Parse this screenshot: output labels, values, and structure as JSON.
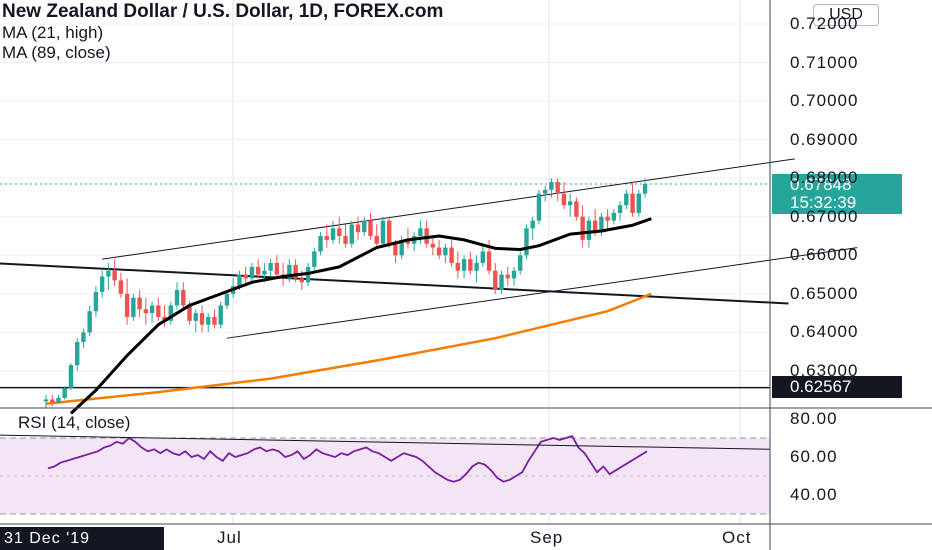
{
  "legend": {
    "title": "New Zealand Dollar / U.S. Dollar, 1D, FOREX.com",
    "ma1": "MA (21, high)",
    "ma2": "MA (89, close)",
    "rsi": "RSI (14, close)"
  },
  "currency_button": "USD",
  "price_tags": {
    "last_price": "0.67848",
    "countdown": "15:32:39",
    "level": "0.62567"
  },
  "cursor_date": "31 Dec '19",
  "colors": {
    "up": "#26a69a",
    "down": "#ef5350",
    "ma21": "#000000",
    "ma89": "#f57c00",
    "rsi_line": "#7b1fa2",
    "rsi_band": "#f3e5f5",
    "last_price_bg": "#26a69a",
    "level_bg": "#131722"
  },
  "chart_data": [
    {
      "type": "candlestick",
      "title": "New Zealand Dollar / U.S. Dollar, 1D, FOREX.com",
      "x_ticks": [
        "Jul",
        "Sep",
        "Oct"
      ],
      "y_ticks": [
        "0.72000",
        "0.71000",
        "0.70000",
        "0.69000",
        "0.68000",
        "0.67000",
        "0.66000",
        "0.65000",
        "0.64000",
        "0.63000"
      ],
      "ylim": [
        0.6238,
        0.7245
      ],
      "grid": true,
      "candles": [
        [
          0.6221,
          0.6238,
          0.6205,
          0.6226
        ],
        [
          0.6226,
          0.6238,
          0.6208,
          0.6218
        ],
        [
          0.6218,
          0.6238,
          0.6215,
          0.623
        ],
        [
          0.623,
          0.626,
          0.6226,
          0.6255
        ],
        [
          0.6255,
          0.632,
          0.625,
          0.6315
        ],
        [
          0.6315,
          0.6385,
          0.63,
          0.6375
        ],
        [
          0.6375,
          0.641,
          0.636,
          0.64
        ],
        [
          0.64,
          0.647,
          0.639,
          0.6455
        ],
        [
          0.6455,
          0.652,
          0.644,
          0.6505
        ],
        [
          0.6505,
          0.656,
          0.649,
          0.6545
        ],
        [
          0.6545,
          0.658,
          0.651,
          0.656
        ],
        [
          0.656,
          0.659,
          0.652,
          0.6535
        ],
        [
          0.6535,
          0.6555,
          0.649,
          0.65
        ],
        [
          0.65,
          0.654,
          0.642,
          0.644
        ],
        [
          0.644,
          0.65,
          0.643,
          0.649
        ],
        [
          0.649,
          0.651,
          0.644,
          0.646
        ],
        [
          0.646,
          0.649,
          0.642,
          0.645
        ],
        [
          0.645,
          0.648,
          0.6425,
          0.647
        ],
        [
          0.647,
          0.649,
          0.643,
          0.644
        ],
        [
          0.644,
          0.647,
          0.6415,
          0.643
        ],
        [
          0.643,
          0.648,
          0.642,
          0.647
        ],
        [
          0.647,
          0.653,
          0.646,
          0.651
        ],
        [
          0.651,
          0.653,
          0.646,
          0.647
        ],
        [
          0.647,
          0.648,
          0.642,
          0.643
        ],
        [
          0.643,
          0.646,
          0.64,
          0.645
        ],
        [
          0.645,
          0.647,
          0.64,
          0.642
        ],
        [
          0.642,
          0.645,
          0.64,
          0.644
        ],
        [
          0.644,
          0.646,
          0.641,
          0.642
        ],
        [
          0.642,
          0.648,
          0.641,
          0.647
        ],
        [
          0.647,
          0.651,
          0.646,
          0.65
        ],
        [
          0.65,
          0.654,
          0.649,
          0.652
        ],
        [
          0.652,
          0.656,
          0.651,
          0.655
        ],
        [
          0.655,
          0.657,
          0.652,
          0.654
        ],
        [
          0.654,
          0.658,
          0.653,
          0.657
        ],
        [
          0.657,
          0.659,
          0.654,
          0.655
        ],
        [
          0.655,
          0.658,
          0.653,
          0.656
        ],
        [
          0.656,
          0.659,
          0.654,
          0.658
        ],
        [
          0.658,
          0.66,
          0.654,
          0.655
        ],
        [
          0.655,
          0.658,
          0.652,
          0.654
        ],
        [
          0.654,
          0.659,
          0.653,
          0.6575
        ],
        [
          0.6575,
          0.659,
          0.653,
          0.654
        ],
        [
          0.654,
          0.656,
          0.651,
          0.653
        ],
        [
          0.653,
          0.658,
          0.652,
          0.657
        ],
        [
          0.657,
          0.662,
          0.656,
          0.661
        ],
        [
          0.661,
          0.666,
          0.66,
          0.665
        ],
        [
          0.665,
          0.668,
          0.662,
          0.664
        ],
        [
          0.664,
          0.669,
          0.663,
          0.667
        ],
        [
          0.667,
          0.67,
          0.663,
          0.665
        ],
        [
          0.665,
          0.668,
          0.662,
          0.663
        ],
        [
          0.663,
          0.669,
          0.662,
          0.668
        ],
        [
          0.668,
          0.67,
          0.664,
          0.666
        ],
        [
          0.666,
          0.67,
          0.665,
          0.669
        ],
        [
          0.669,
          0.671,
          0.664,
          0.665
        ],
        [
          0.665,
          0.668,
          0.662,
          0.663
        ],
        [
          0.663,
          0.67,
          0.662,
          0.669
        ],
        [
          0.669,
          0.67,
          0.662,
          0.663
        ],
        [
          0.663,
          0.664,
          0.658,
          0.66
        ],
        [
          0.66,
          0.665,
          0.659,
          0.664
        ],
        [
          0.664,
          0.667,
          0.662,
          0.663
        ],
        [
          0.663,
          0.666,
          0.661,
          0.665
        ],
        [
          0.665,
          0.669,
          0.663,
          0.667
        ],
        [
          0.667,
          0.669,
          0.662,
          0.663
        ],
        [
          0.663,
          0.665,
          0.66,
          0.662
        ],
        [
          0.662,
          0.664,
          0.659,
          0.66
        ],
        [
          0.66,
          0.663,
          0.658,
          0.662
        ],
        [
          0.662,
          0.664,
          0.657,
          0.658
        ],
        [
          0.658,
          0.661,
          0.654,
          0.656
        ],
        [
          0.656,
          0.66,
          0.654,
          0.659
        ],
        [
          0.659,
          0.661,
          0.655,
          0.656
        ],
        [
          0.656,
          0.66,
          0.653,
          0.658
        ],
        [
          0.658,
          0.663,
          0.657,
          0.661
        ],
        [
          0.661,
          0.664,
          0.655,
          0.656
        ],
        [
          0.656,
          0.658,
          0.65,
          0.651
        ],
        [
          0.651,
          0.656,
          0.65,
          0.655
        ],
        [
          0.655,
          0.657,
          0.652,
          0.654
        ],
        [
          0.654,
          0.657,
          0.652,
          0.656
        ],
        [
          0.656,
          0.661,
          0.655,
          0.66
        ],
        [
          0.66,
          0.668,
          0.659,
          0.667
        ],
        [
          0.667,
          0.67,
          0.664,
          0.669
        ],
        [
          0.669,
          0.677,
          0.668,
          0.676
        ],
        [
          0.676,
          0.678,
          0.674,
          0.677
        ],
        [
          0.677,
          0.68,
          0.675,
          0.679
        ],
        [
          0.679,
          0.68,
          0.674,
          0.676
        ],
        [
          0.676,
          0.679,
          0.672,
          0.673
        ],
        [
          0.673,
          0.676,
          0.67,
          0.674
        ],
        [
          0.674,
          0.675,
          0.669,
          0.67
        ],
        [
          0.67,
          0.673,
          0.662,
          0.664
        ],
        [
          0.664,
          0.67,
          0.662,
          0.669
        ],
        [
          0.669,
          0.672,
          0.665,
          0.666
        ],
        [
          0.666,
          0.671,
          0.665,
          0.67
        ],
        [
          0.67,
          0.672,
          0.667,
          0.669
        ],
        [
          0.669,
          0.672,
          0.668,
          0.671
        ],
        [
          0.671,
          0.674,
          0.669,
          0.673
        ],
        [
          0.673,
          0.677,
          0.672,
          0.676
        ],
        [
          0.676,
          0.679,
          0.67,
          0.671
        ],
        [
          0.671,
          0.677,
          0.67,
          0.676
        ],
        [
          0.676,
          0.68,
          0.675,
          0.6785
        ]
      ],
      "ma21_high": [
        [
          0.619,
          4
        ],
        [
          0.625,
          8
        ],
        [
          0.634,
          13
        ],
        [
          0.642,
          18
        ],
        [
          0.647,
          23
        ],
        [
          0.65,
          28
        ],
        [
          0.653,
          33
        ],
        [
          0.6545,
          38
        ],
        [
          0.6553,
          42
        ],
        [
          0.657,
          47
        ],
        [
          0.662,
          53
        ],
        [
          0.664,
          58
        ],
        [
          0.665,
          63
        ],
        [
          0.664,
          67
        ],
        [
          0.6618,
          72
        ],
        [
          0.6615,
          76
        ],
        [
          0.6625,
          79
        ],
        [
          0.6655,
          84
        ],
        [
          0.6663,
          89
        ],
        [
          0.6678,
          94
        ],
        [
          0.6695,
          97
        ]
      ],
      "ma89_close": [
        [
          0.6215,
          0
        ],
        [
          0.6245,
          18
        ],
        [
          0.628,
          36
        ],
        [
          0.633,
          54
        ],
        [
          0.6385,
          72
        ],
        [
          0.6455,
          90
        ],
        [
          0.65,
          97
        ]
      ],
      "trendlines": [
        {
          "name": "channel-upper",
          "points": [
            [
              0.659,
              9
            ],
            [
              0.685,
              120
            ]
          ]
        },
        {
          "name": "channel-lower",
          "points": [
            [
              0.6385,
              29
            ],
            [
              0.662,
              130
            ]
          ]
        },
        {
          "name": "descending-line",
          "points": [
            [
              0.6595,
              -27
            ],
            [
              0.6475,
              119
            ]
          ]
        }
      ],
      "horizontal_levels": [
        0.62567,
        0.67848
      ]
    },
    {
      "type": "line",
      "title": "RSI (14, close)",
      "y_ticks": [
        "80.00",
        "60.00",
        "40.00"
      ],
      "ylim": [
        28,
        86
      ],
      "band": [
        30,
        70
      ],
      "values": [
        54,
        55,
        57,
        58,
        59,
        60,
        61,
        62,
        63,
        65,
        66,
        68,
        67,
        70,
        68,
        65,
        63,
        64,
        62,
        64,
        62,
        61,
        63,
        60,
        61,
        59,
        63,
        60,
        58,
        62,
        60,
        61,
        62,
        64,
        65,
        63,
        64,
        63,
        60,
        61,
        63,
        59,
        61,
        64,
        62,
        61,
        60,
        62,
        61,
        63,
        64,
        65,
        63,
        62,
        60,
        58,
        60,
        62,
        61,
        60,
        58,
        55,
        52,
        50,
        48,
        47,
        48,
        51,
        55,
        57,
        56,
        53,
        49,
        47,
        48,
        50,
        52,
        58,
        63,
        68,
        69,
        70,
        69,
        70,
        71,
        65,
        62,
        57,
        52,
        55,
        51,
        53,
        55,
        57,
        59,
        61,
        63
      ],
      "trendline": [
        [
          71,
          0
        ],
        [
          63,
          145
        ]
      ]
    }
  ]
}
